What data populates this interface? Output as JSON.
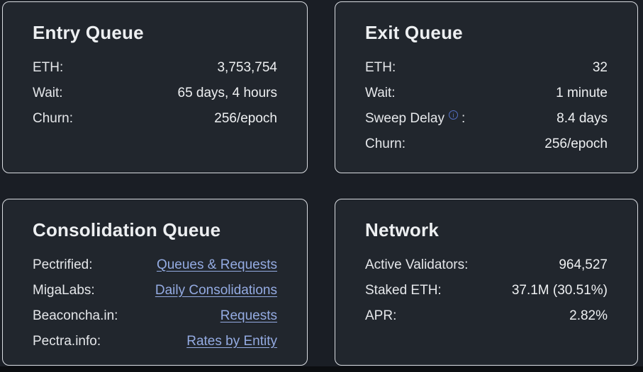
{
  "colors": {
    "page_bg": "#1a1e25",
    "card_bg": "#21262d",
    "bottom_bg": "#0c0e11",
    "border_color": "#d9dce1",
    "title_color": "#edeff1",
    "text_color": "#e5e7ea",
    "value_color": "#eef0f2",
    "link_color": "#94abe2",
    "info_color": "#5470c4"
  },
  "icons": {
    "info": "i"
  },
  "cards": [
    {
      "title": "Entry Queue",
      "rows": [
        {
          "label": "ETH:",
          "value": "3,753,754"
        },
        {
          "label": "Wait:",
          "value": "65 days, 4 hours"
        },
        {
          "label": "Churn:",
          "value": "256/epoch"
        }
      ]
    },
    {
      "title": "Exit Queue",
      "rows": [
        {
          "label": "ETH:",
          "value": "32"
        },
        {
          "label": "Wait:",
          "value": "1 minute"
        },
        {
          "label": "Sweep Delay",
          "info_icon": true,
          "suffix": ":",
          "value": "8.4 days"
        },
        {
          "label": "Churn:",
          "value": "256/epoch"
        }
      ]
    },
    {
      "title": "Consolidation Queue",
      "rows": [
        {
          "label": "Pectrified:",
          "link": "Queues & Requests"
        },
        {
          "label": "MigaLabs:",
          "link": "Daily Consolidations"
        },
        {
          "label": "Beaconcha.in:",
          "link": "Requests"
        },
        {
          "label": "Pectra.info:",
          "link": "Rates by Entity"
        }
      ]
    },
    {
      "title": "Network",
      "rows": [
        {
          "label": "Active Validators:",
          "value": "964,527"
        },
        {
          "label": "Staked ETH:",
          "value": "37.1M (30.51%)"
        },
        {
          "label": "APR:",
          "value": "2.82%"
        }
      ]
    }
  ]
}
